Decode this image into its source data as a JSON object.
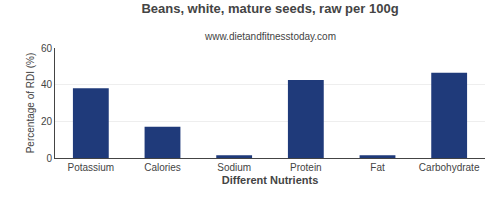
{
  "chart_data": {
    "type": "bar",
    "title": "Beans, white, mature seeds, raw per 100g",
    "subtitle": "www.dietandfitnesstoday.com",
    "xlabel": "Different Nutrients",
    "ylabel": "Percentage of RDI (%)",
    "categories": [
      "Potassium",
      "Calories",
      "Sodium",
      "Protein",
      "Fat",
      "Carbohydrate"
    ],
    "values": [
      38.0,
      17.0,
      1.5,
      42.5,
      1.5,
      46.5
    ],
    "color": "#1f3a7a",
    "ylim": [
      0,
      60
    ],
    "yticks": [
      0,
      20,
      40,
      60
    ],
    "grid": true
  }
}
